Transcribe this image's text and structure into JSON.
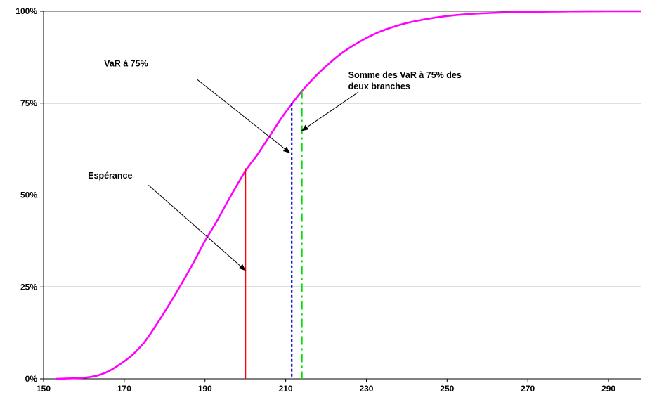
{
  "chart_data": {
    "type": "line",
    "title": "",
    "xlabel": "",
    "ylabel": "",
    "xlim": [
      150,
      298
    ],
    "ylim": [
      0,
      1
    ],
    "grid": true,
    "x_ticks": [
      150,
      170,
      190,
      210,
      230,
      250,
      270,
      290
    ],
    "x_tick_labels": [
      "150",
      "170",
      "190",
      "210",
      "230",
      "250",
      "270",
      "290"
    ],
    "y_ticks": [
      0,
      0.25,
      0.5,
      0.75,
      1
    ],
    "y_tick_labels": [
      "0%",
      "25%",
      "50%",
      "75%",
      "100%"
    ],
    "series": [
      {
        "color": "#ff00ff",
        "x": [
          153,
          156,
          160,
          163,
          166,
          169,
          172,
          175,
          178,
          181,
          184,
          187,
          190,
          193,
          196,
          200,
          203,
          206,
          209,
          212,
          215,
          218,
          221,
          224,
          228,
          232,
          236,
          240,
          245,
          250,
          255,
          260,
          265,
          270,
          275,
          280,
          285,
          290,
          298
        ],
        "y": [
          0.0,
          0.001,
          0.003,
          0.008,
          0.02,
          0.04,
          0.065,
          0.1,
          0.148,
          0.2,
          0.255,
          0.313,
          0.375,
          0.43,
          0.49,
          0.565,
          0.61,
          0.66,
          0.71,
          0.755,
          0.795,
          0.83,
          0.86,
          0.887,
          0.915,
          0.938,
          0.955,
          0.968,
          0.979,
          0.987,
          0.992,
          0.995,
          0.997,
          0.998,
          0.999,
          0.9995,
          0.9998,
          1.0,
          1.0
        ]
      }
    ],
    "vlines": [
      {
        "name": "esperance",
        "x": 200,
        "y_top": 0.573,
        "color": "#ff0000",
        "style": "solid"
      },
      {
        "name": "var75",
        "x": 211.5,
        "y_top": 0.75,
        "color": "#0000cc",
        "style": "dotted"
      },
      {
        "name": "sum-var75",
        "x": 214,
        "y_top": 0.785,
        "color": "#00dd00",
        "style": "dashdot"
      }
    ],
    "annotations": [
      {
        "name": "esperance",
        "lines": [
          "Espérance"
        ],
        "text_x": 161,
        "text_y": 0.545,
        "arrow_from": [
          176,
          0.527
        ],
        "arrow_to": [
          200,
          0.295
        ]
      },
      {
        "name": "var75",
        "lines": [
          "VaR à 75%"
        ],
        "text_x": 165,
        "text_y": 0.85,
        "arrow_from": [
          188,
          0.815
        ],
        "arrow_to": [
          211,
          0.615
        ]
      },
      {
        "name": "sum-var75",
        "lines": [
          "Somme des VaR à 75% des",
          "deux branches"
        ],
        "text_x": 225.5,
        "text_y": 0.818,
        "arrow_from": [
          228,
          0.78
        ],
        "arrow_to": [
          214,
          0.675
        ]
      }
    ]
  }
}
